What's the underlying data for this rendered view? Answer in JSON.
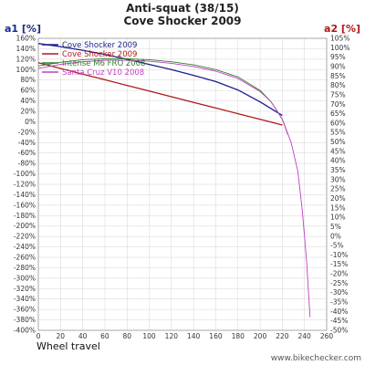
{
  "chart_data": {
    "type": "line",
    "title": "Anti-squat (38/15)",
    "subtitle": "Cove Shocker 2009",
    "xlabel": "Wheel travel",
    "y1label": "a1 [%]",
    "y2label": "a2 [%]",
    "credit": "www.bikechecker.com",
    "xlim": [
      0,
      260
    ],
    "x_ticks": [
      0,
      20,
      40,
      60,
      80,
      100,
      120,
      140,
      160,
      180,
      200,
      220,
      240,
      260
    ],
    "y1lim": [
      -400,
      160
    ],
    "y1_tick_step": 20,
    "y2lim": [
      -50,
      105
    ],
    "y2_tick_step": 5,
    "grid": true,
    "legend_position": "top-left",
    "colors": {
      "y1label": "#1a2a8a",
      "y2label": "#b01818",
      "grid": "#d4d4d4"
    },
    "series": [
      {
        "name": "Cove Shocker 2009",
        "axis": "a1",
        "color": "#1c1c8c",
        "x": [
          0,
          20,
          40,
          60,
          80,
          100,
          120,
          140,
          160,
          180,
          200,
          220
        ],
        "y": [
          150,
          144,
          137,
          129,
          120,
          110,
          100,
          89,
          77,
          61,
          38,
          12
        ]
      },
      {
        "name": "Cove Shocker 2009",
        "axis": "a2",
        "color": "#b01818",
        "x": [
          0,
          20,
          40,
          60,
          80,
          100,
          120,
          140,
          160,
          180,
          200,
          220
        ],
        "y": [
          92,
          89,
          86,
          83,
          80,
          77,
          74,
          71,
          68,
          65,
          62,
          59
        ]
      },
      {
        "name": "Intense M6 FRO 2008",
        "axis": "a1",
        "color": "#2f7f2f",
        "x": [
          0,
          20,
          40,
          60,
          80,
          100,
          120,
          140,
          160,
          180,
          200,
          210,
          220,
          225
        ],
        "y": [
          107,
          114,
          119,
          121,
          121,
          119,
          115,
          109,
          100,
          86,
          60,
          38,
          5,
          -25
        ]
      },
      {
        "name": "Santa Cruz V10 2008",
        "axis": "a1",
        "color": "#c23ec2",
        "x": [
          0,
          20,
          40,
          60,
          80,
          100,
          120,
          140,
          160,
          180,
          200,
          210,
          220,
          228,
          234,
          238,
          242,
          245
        ],
        "y": [
          102,
          110,
          115,
          118,
          118,
          116,
          112,
          106,
          97,
          83,
          58,
          38,
          5,
          -40,
          -95,
          -170,
          -270,
          -375
        ]
      }
    ]
  }
}
